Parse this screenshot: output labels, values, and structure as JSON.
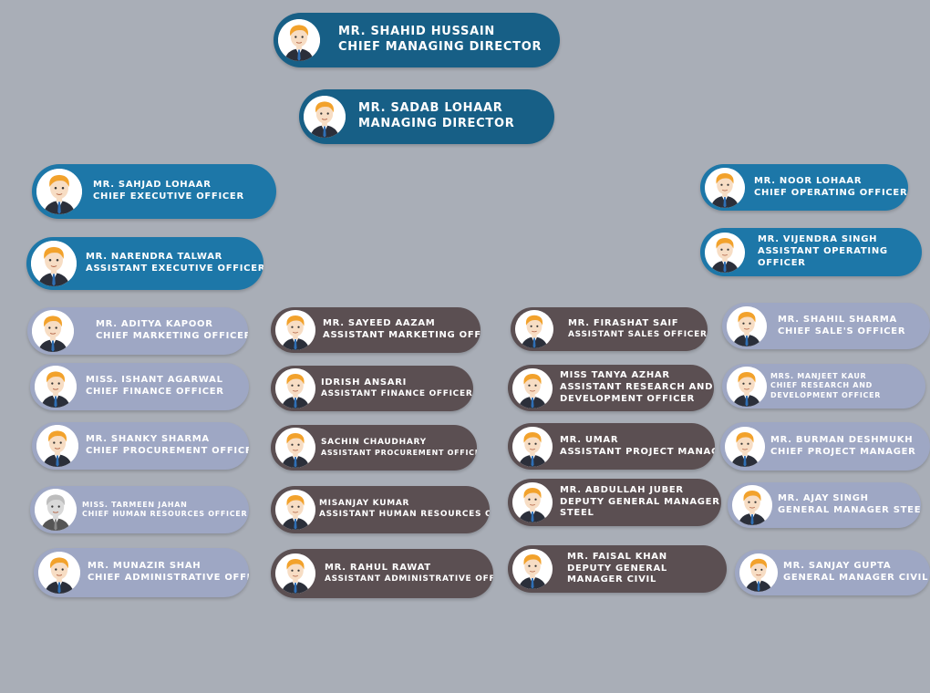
{
  "nodes": [
    {
      "id": "shahid-hussain",
      "name": "MR. SHAHID HUSSAIN",
      "title": "CHIEF MANAGING DIRECTOR"
    },
    {
      "id": "sadab-lohaar",
      "name": "MR. SADAB LOHAAR",
      "title": "MANAGING DIRECTOR"
    },
    {
      "id": "sahjad-lohaar",
      "name": "MR. SAHJAD LOHAAR",
      "title": "CHIEF EXECUTIVE OFFICER"
    },
    {
      "id": "narendra-talwar",
      "name": "MR. NARENDRA TALWAR",
      "title": "ASSISTANT EXECUTIVE OFFICER"
    },
    {
      "id": "noor-lohaar",
      "name": "MR. NOOR LOHAAR",
      "title": "CHIEF OPERATING OFFICER"
    },
    {
      "id": "vijendra-singh",
      "name": "MR. VIJENDRA SINGH",
      "title": "ASSISTANT OPERATING",
      "title2": "OFFICER"
    },
    {
      "id": "aditya-kapoor",
      "name": "MR. ADITYA KAPOOR",
      "title": "CHIEF MARKETING OFFICER"
    },
    {
      "id": "ishant-agarwal",
      "name": "MISS. ISHANT AGARWAL",
      "title": "CHIEF FINANCE OFFICER"
    },
    {
      "id": "shanky-sharma",
      "name": "MR. SHANKY SHARMA",
      "title": "CHIEF PROCUREMENT OFFICER"
    },
    {
      "id": "tarmeen-jahan",
      "name": "MISS. TARMEEN JAHAN",
      "title": "CHIEF HUMAN RESOURCES OFFICER"
    },
    {
      "id": "munazir-shah",
      "name": "MR. MUNAZIR SHAH",
      "title": "CHIEF ADMINISTRATIVE OFFICER"
    },
    {
      "id": "sayeed-aazam",
      "name": "MR. SAYEED AAZAM",
      "title": "ASSISTANT MARKETING OFFICER"
    },
    {
      "id": "idrish-ansari",
      "name": "IDRISH ANSARI",
      "title": "ASSISTANT FINANCE OFFICER"
    },
    {
      "id": "sachin-chaudhary",
      "name": "SACHIN CHAUDHARY",
      "title": "ASSISTANT PROCUREMENT OFFICER"
    },
    {
      "id": "misanjay-kumar",
      "name": "MISANJAY KUMAR",
      "title": "ASSISTANT HUMAN RESOURCES OFFICER"
    },
    {
      "id": "rahul-rawat",
      "name": "MR. RAHUL RAWAT",
      "title": "ASSISTANT ADMINISTRATIVE OFFICER"
    },
    {
      "id": "firashat-saif",
      "name": "MR. FIRASHAT SAIF",
      "title": "ASSISTANT SALES OFFICER"
    },
    {
      "id": "tanya-azhar",
      "name": "MISS TANYA AZHAR",
      "title": "ASSISTANT RESEARCH AND",
      "title2": "DEVELOPMENT OFFICER"
    },
    {
      "id": "umar",
      "name": "MR. UMAR",
      "title": "ASSISTANT PROJECT MANAGER"
    },
    {
      "id": "abdullah-juber",
      "name": "MR. ABDULLAH JUBER",
      "title": "DEPUTY GENERAL MANAGER",
      "title2": "STEEL"
    },
    {
      "id": "faisal-khan",
      "name": "MR. FAISAL KHAN",
      "title": "DEPUTY GENERAL",
      "title2": "MANAGER CIVIL"
    },
    {
      "id": "shahil-sharma",
      "name": "MR. SHAHIL SHARMA",
      "title": "CHIEF SALE'S OFFICER"
    },
    {
      "id": "manjeet-kaur",
      "name": "MRS. MANJEET KAUR",
      "title": "CHIEF RESEARCH AND",
      "title2": "DEVELOPMENT OFFICER"
    },
    {
      "id": "burman-deshmukh",
      "name": "MR. BURMAN DESHMUKH",
      "title": "CHIEF PROJECT MANAGER"
    },
    {
      "id": "ajay-singh",
      "name": "MR. AJAY SINGH",
      "title": "GENERAL MANAGER STEEL"
    },
    {
      "id": "sanjay-gupta",
      "name": "MR. SANJAY GUPTA",
      "title": "GENERAL MANAGER CIVIL"
    }
  ],
  "colors": {
    "background": "#a9aeb7",
    "top_level": "#175f86",
    "executive": "#1d77a8",
    "chief": "#9ea7c4",
    "assistant": "#5b4f52",
    "text": "#ffffff"
  },
  "icons": {
    "avatar": "man-avatar-icon",
    "avatar_grayscale": "grayscale-avatar-icon"
  }
}
